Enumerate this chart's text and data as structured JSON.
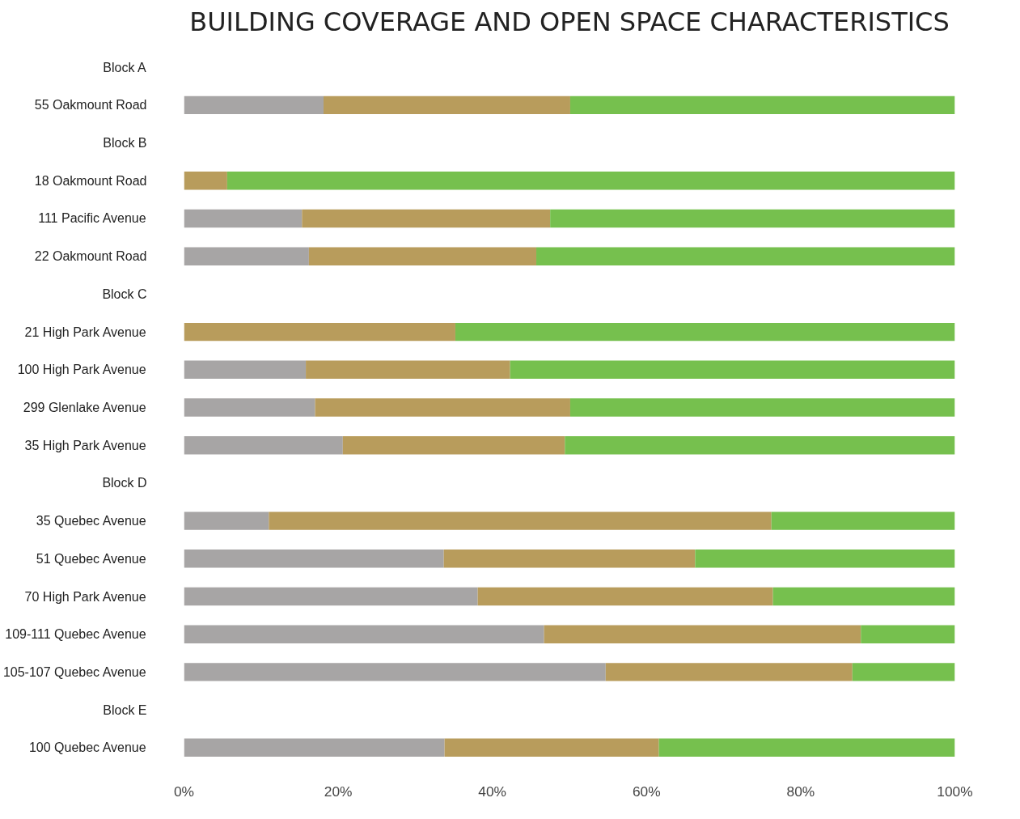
{
  "chart_data": {
    "type": "bar",
    "orientation": "horizontal",
    "stacked": true,
    "title": "BUILDING COVERAGE AND OPEN SPACE CHARACTERISTICS",
    "categories": [
      "Block A",
      "55 Oakmount Road",
      "Block B",
      "18 Oakmount Road",
      "111 Pacific Avenue",
      "22 Oakmount Road",
      "Block C",
      "21 High Park Avenue",
      "100 High Park Avenue",
      "299 Glenlake Avenue",
      "35 High Park Avenue",
      "Block D",
      "35 Quebec Avenue",
      "51 Quebec Avenue",
      "70 High Park Avenue",
      "109-111 Quebec Avenue",
      "105-107 Quebec Avenue",
      "Block E",
      "100 Quebec Avenue"
    ],
    "series": [
      {
        "color": "#a7a5a5",
        "values": [
          null,
          18.1,
          null,
          0,
          15.3,
          16.2,
          null,
          0,
          15.8,
          17.0,
          20.6,
          null,
          11.0,
          33.7,
          38.1,
          46.7,
          54.7,
          null,
          33.8
        ]
      },
      {
        "color": "#b89c5c",
        "values": [
          null,
          32.0,
          null,
          5.6,
          32.2,
          29.5,
          null,
          35.2,
          26.5,
          33.1,
          28.8,
          null,
          65.2,
          32.6,
          38.3,
          41.1,
          32.0,
          null,
          27.8
        ]
      },
      {
        "color": "#76c04e",
        "values": [
          null,
          49.9,
          null,
          94.4,
          52.5,
          54.3,
          null,
          64.8,
          57.7,
          49.9,
          50.6,
          null,
          23.8,
          33.7,
          23.6,
          12.2,
          13.3,
          null,
          38.4
        ]
      }
    ],
    "xlim": [
      0,
      100
    ],
    "xticks": [
      {
        "value": 0,
        "label": "0%"
      },
      {
        "value": 20,
        "label": "20%"
      },
      {
        "value": 40,
        "label": "40%"
      },
      {
        "value": 60,
        "label": "60%"
      },
      {
        "value": 80,
        "label": "80%"
      },
      {
        "value": 100,
        "label": "100%"
      }
    ],
    "grid": false,
    "legend": false
  }
}
